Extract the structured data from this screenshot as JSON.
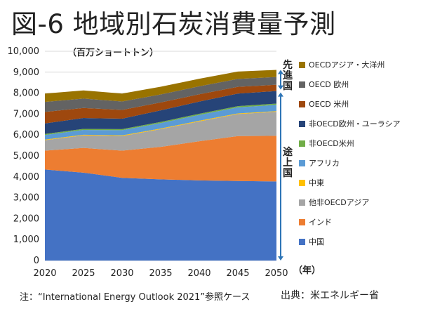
{
  "title": "図-6 地域別石炭消費量予測",
  "unit_label": "（百万ショートトン）",
  "year_label": "（年）",
  "note": "注：“International Energy Outlook 2021”参照ケース",
  "source": "出典：米エネルギー省",
  "bracket_labels": {
    "developed": "先進国",
    "developing": "途上国"
  },
  "chart_data": {
    "type": "area",
    "stacked": true,
    "title": "図-6 地域別石炭消費量予測",
    "xlabel": "（年）",
    "ylabel": "（百万ショートトン）",
    "x": [
      2020,
      2025,
      2030,
      2035,
      2040,
      2045,
      2050
    ],
    "ylim": [
      0,
      10000
    ],
    "yticks": [
      0,
      1000,
      2000,
      3000,
      4000,
      5000,
      6000,
      7000,
      8000,
      9000,
      10000
    ],
    "ytick_labels": [
      "0",
      "1,000",
      "2,000",
      "3,000",
      "4,000",
      "5,000",
      "6,000",
      "7,000",
      "8,000",
      "9,000",
      "10,000"
    ],
    "grid": true,
    "legend_position": "right",
    "series": [
      {
        "name": "中国",
        "color": "#4472C4",
        "values": [
          4350,
          4200,
          3950,
          3880,
          3830,
          3800,
          3780
        ]
      },
      {
        "name": "インド",
        "color": "#ED7D31",
        "values": [
          900,
          1180,
          1300,
          1550,
          1870,
          2150,
          2180
        ]
      },
      {
        "name": "他非OECDアジア",
        "color": "#A5A5A5",
        "values": [
          500,
          600,
          700,
          850,
          950,
          1050,
          1150
        ]
      },
      {
        "name": "中東",
        "color": "#FFC000",
        "values": [
          30,
          30,
          30,
          30,
          30,
          30,
          30
        ]
      },
      {
        "name": "アフリカ",
        "color": "#5B9BD5",
        "values": [
          220,
          230,
          250,
          260,
          280,
          290,
          300
        ]
      },
      {
        "name": "非OECD米州",
        "color": "#70AD47",
        "values": [
          50,
          50,
          50,
          55,
          55,
          60,
          60
        ]
      },
      {
        "name": "非OECD欧州・ユーラシア",
        "color": "#264478",
        "values": [
          500,
          520,
          500,
          550,
          580,
          600,
          600
        ]
      },
      {
        "name": "OECD 米州",
        "color": "#9E480E",
        "values": [
          550,
          480,
          420,
          380,
          350,
          320,
          300
        ]
      },
      {
        "name": "OECD 欧州",
        "color": "#636363",
        "values": [
          480,
          450,
          400,
          380,
          380,
          380,
          370
        ]
      },
      {
        "name": "OECDアジア・大洋州",
        "color": "#997300",
        "values": [
          400,
          390,
          380,
          370,
          360,
          350,
          340
        ]
      }
    ]
  }
}
